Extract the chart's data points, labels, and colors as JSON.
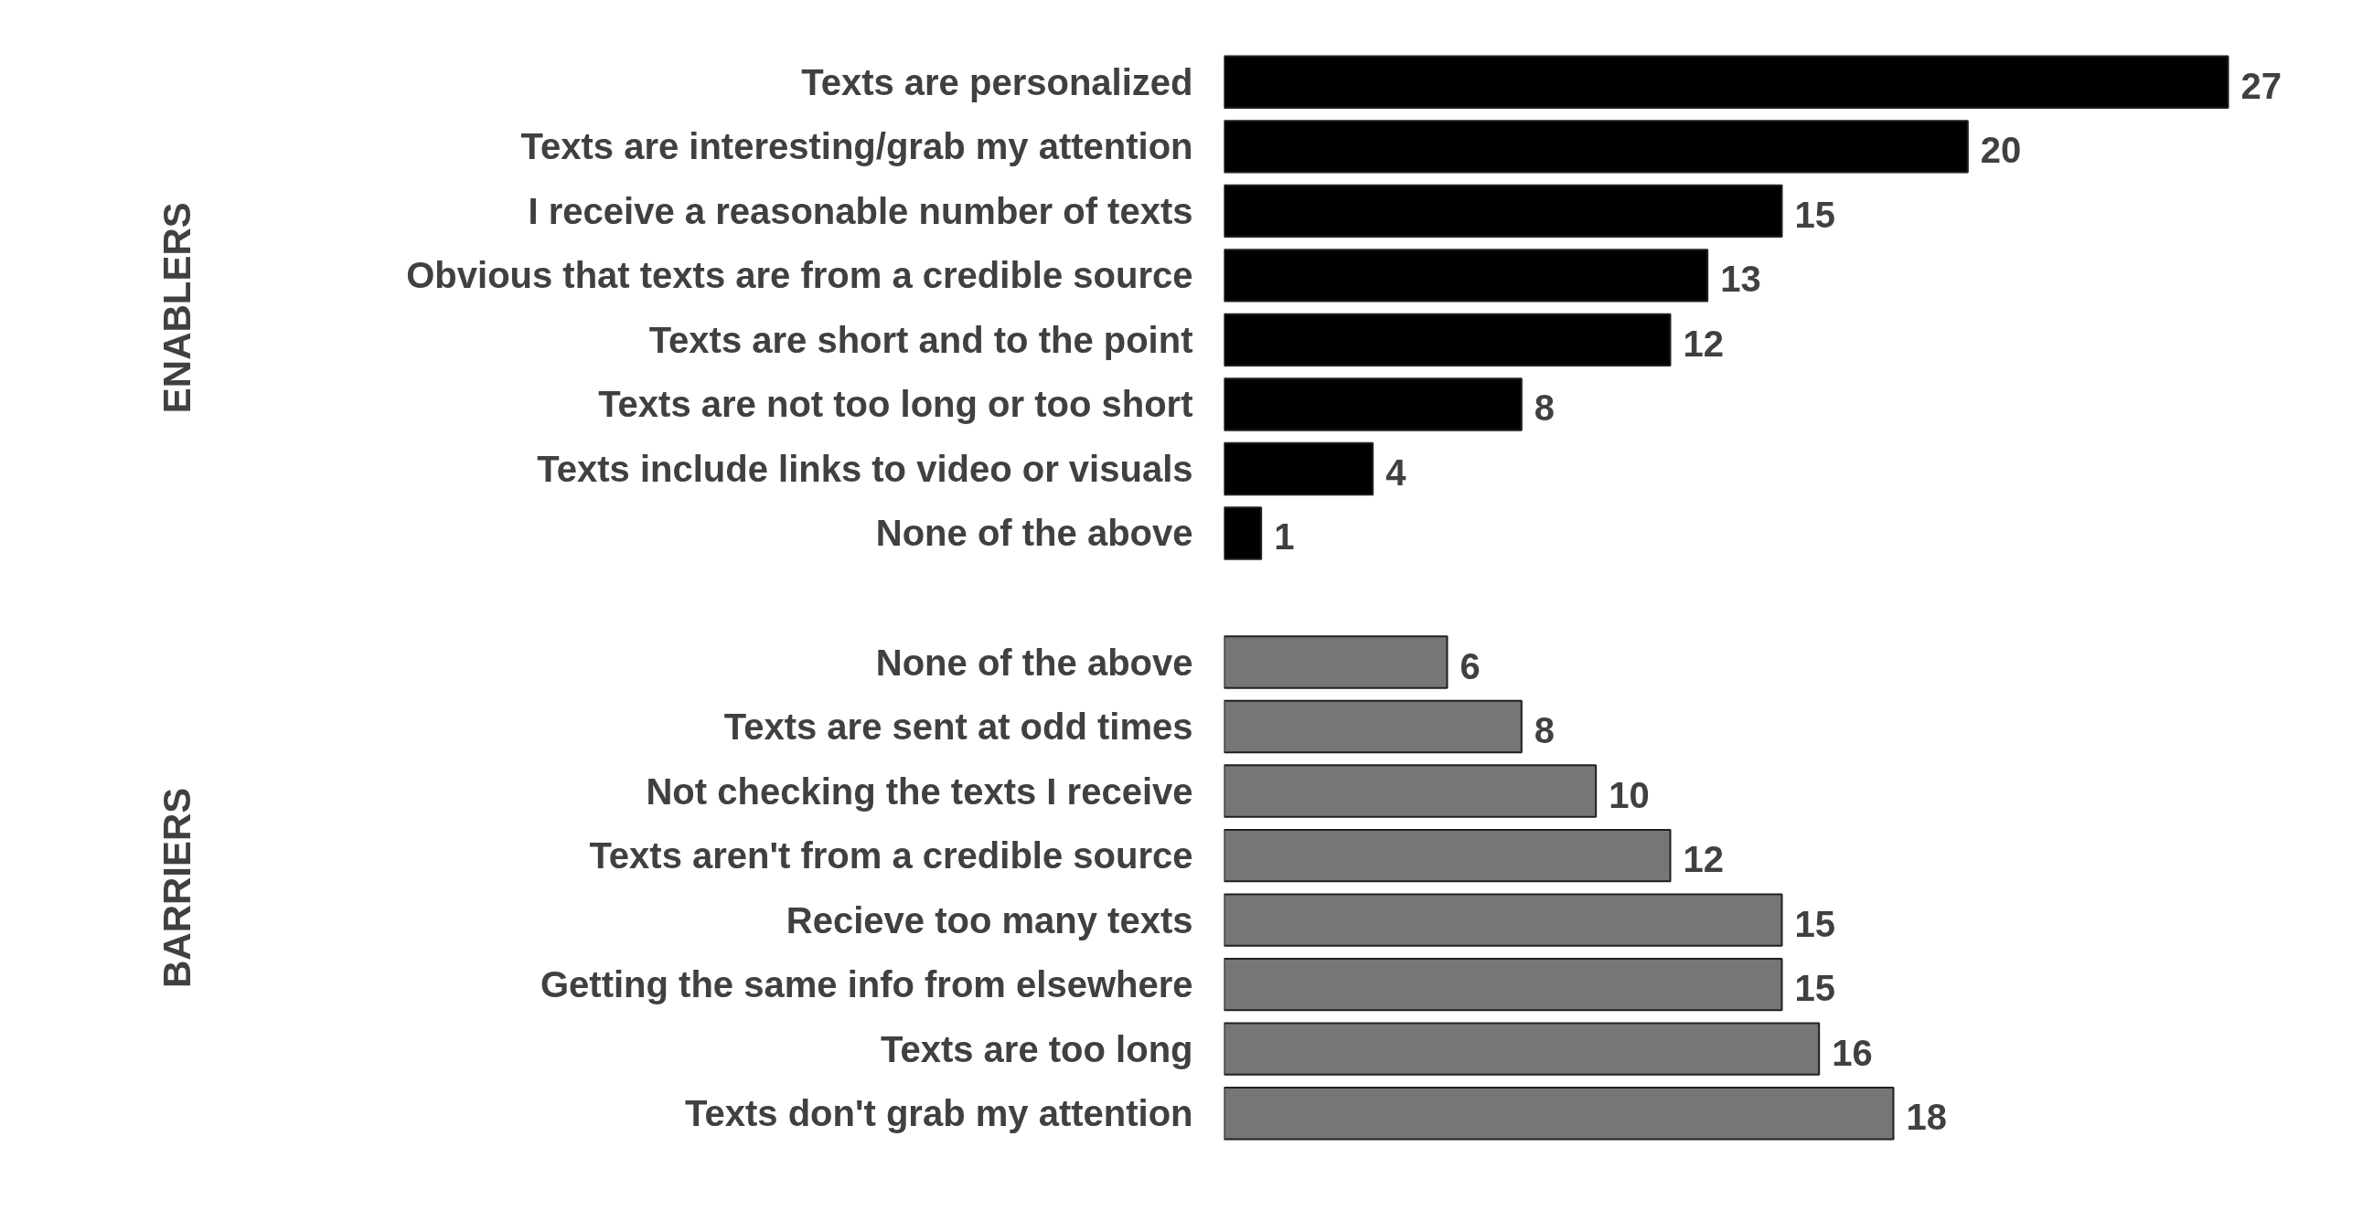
{
  "chart_data": {
    "type": "bar",
    "orientation": "horizontal",
    "categories": [
      "Texts are personalized",
      "Texts are interesting/grab my attention",
      "I receive a reasonable number of texts",
      "Obvious that texts are from a credible source",
      "Texts are short and to the point",
      "Texts are not too long or too short",
      "Texts include links to video or visuals",
      "None of the above",
      null,
      "None of the above",
      "Texts are sent at odd times",
      "Not checking the texts I receive",
      "Texts aren't from a credible source",
      "Recieve too many texts",
      "Getting the same info from elsewhere",
      "Texts are too long",
      "Texts don't grab my attention"
    ],
    "values": [
      27,
      20,
      15,
      13,
      12,
      8,
      4,
      1,
      null,
      6,
      8,
      10,
      12,
      15,
      15,
      16,
      18
    ],
    "colors": [
      "#000000",
      "#000000",
      "#000000",
      "#000000",
      "#000000",
      "#000000",
      "#000000",
      "#000000",
      null,
      "#767676",
      "#767676",
      "#767676",
      "#767676",
      "#767676",
      "#767676",
      "#767676",
      "#767676"
    ],
    "data_labels": true,
    "annotations": [
      "ENABLERS",
      "BARRIERS"
    ]
  }
}
